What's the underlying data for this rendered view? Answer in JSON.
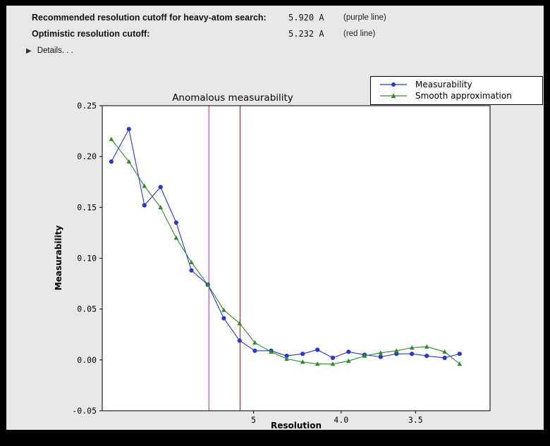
{
  "window": {
    "outer_bg": "#000000",
    "panel_bg": "#e8e8e8"
  },
  "header": {
    "rows": [
      {
        "label": "Recommended resolution cutoff for heavy-atom search:",
        "value": "5.920 A",
        "note": "(purple line)"
      },
      {
        "label": "Optimistic resolution cutoff:",
        "value": "5.232 A",
        "note": "(red line)"
      }
    ],
    "details_label": "Details. . ."
  },
  "chart_data": {
    "type": "line",
    "title": "Anomalous measurability",
    "xlabel": "Resolution",
    "ylabel": "Measurability",
    "x_scale": "inverse_square_resolution",
    "xlim_d": [
      30.0,
      3.15
    ],
    "ylim": [
      -0.05,
      0.25
    ],
    "grid": false,
    "legend_position": "upper right",
    "yticks": [
      {
        "v": -0.05,
        "label": "-0.05"
      },
      {
        "v": 0.0,
        "label": "0.00"
      },
      {
        "v": 0.05,
        "label": "0.05"
      },
      {
        "v": 0.1,
        "label": "0.10"
      },
      {
        "v": 0.15,
        "label": "0.15"
      },
      {
        "v": 0.2,
        "label": "0.20"
      },
      {
        "v": 0.25,
        "label": "0.25"
      }
    ],
    "xticks": [
      {
        "d": 5.0,
        "label": "5"
      },
      {
        "d": 4.0,
        "label": "4.0"
      },
      {
        "d": 3.5,
        "label": "3.5"
      }
    ],
    "vlines": [
      {
        "name": "purple line",
        "d": 5.92,
        "color": "#c04ec0"
      },
      {
        "name": "red line",
        "d": 5.232,
        "color": "#9e4038"
      }
    ],
    "series": [
      {
        "name": "Measurability",
        "color": "#2a35cc",
        "marker": "circle",
        "points": [
          [
            17.05,
            0.195
          ],
          [
            11.21,
            0.227
          ],
          [
            9.15,
            0.152
          ],
          [
            7.88,
            0.17
          ],
          [
            7.05,
            0.135
          ],
          [
            6.45,
            0.088
          ],
          [
            5.95,
            0.074
          ],
          [
            5.56,
            0.041
          ],
          [
            5.24,
            0.019
          ],
          [
            4.98,
            0.009
          ],
          [
            4.74,
            0.009
          ],
          [
            4.54,
            0.004
          ],
          [
            4.36,
            0.006
          ],
          [
            4.21,
            0.01
          ],
          [
            4.07,
            0.002
          ],
          [
            3.94,
            0.008
          ],
          [
            3.82,
            0.005
          ],
          [
            3.71,
            0.003
          ],
          [
            3.61,
            0.006
          ],
          [
            3.52,
            0.006
          ],
          [
            3.44,
            0.004
          ],
          [
            3.35,
            0.002
          ],
          [
            3.28,
            0.006
          ]
        ]
      },
      {
        "name": "Smooth approximation",
        "color": "#2e8b2e",
        "marker": "triangle",
        "points": [
          [
            17.05,
            0.217
          ],
          [
            11.21,
            0.195
          ],
          [
            9.15,
            0.171
          ],
          [
            7.88,
            0.15
          ],
          [
            7.05,
            0.12
          ],
          [
            6.45,
            0.096
          ],
          [
            5.95,
            0.074
          ],
          [
            5.56,
            0.049
          ],
          [
            5.24,
            0.036
          ],
          [
            4.98,
            0.017
          ],
          [
            4.74,
            0.008
          ],
          [
            4.54,
            0.001
          ],
          [
            4.36,
            -0.002
          ],
          [
            4.21,
            -0.004
          ],
          [
            4.07,
            -0.004
          ],
          [
            3.94,
            -0.001
          ],
          [
            3.82,
            0.004
          ],
          [
            3.71,
            0.007
          ],
          [
            3.61,
            0.009
          ],
          [
            3.52,
            0.012
          ],
          [
            3.44,
            0.013
          ],
          [
            3.35,
            0.008
          ],
          [
            3.28,
            -0.004
          ]
        ]
      }
    ]
  }
}
